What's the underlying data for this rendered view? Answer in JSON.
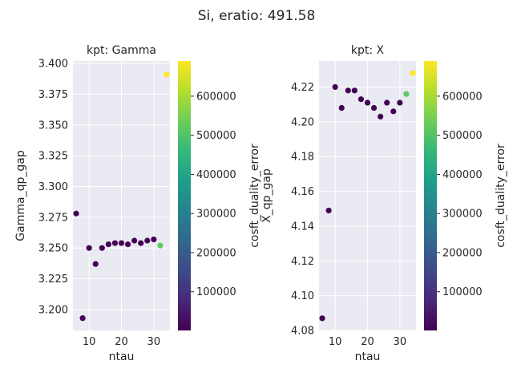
{
  "suptitle": "Si, eratio: 491.58",
  "colors": {
    "axes_bg": "#EAEAF2",
    "grid": "#FFFFFF",
    "text": "#262626",
    "colormap": [
      "#440154",
      "#482878",
      "#3E4A89",
      "#31688E",
      "#26828E",
      "#1F9E89",
      "#35B779",
      "#6DCD59",
      "#B4DE2C",
      "#FDE725"
    ]
  },
  "colorbar": {
    "label": "cosft_duality_error",
    "range": [
      1000,
      690000
    ],
    "ticks": [
      100000,
      200000,
      300000,
      400000,
      500000,
      600000
    ],
    "tick_labels": [
      "100000",
      "200000",
      "300000",
      "400000",
      "500000",
      "600000"
    ]
  },
  "chart_data": [
    {
      "type": "scatter",
      "title": "kpt: Gamma",
      "xlabel": "ntau",
      "ylabel": "Gamma_qp_gap",
      "xlim": [
        5,
        35
      ],
      "ylim": [
        3.183,
        3.402
      ],
      "xticks": [
        10,
        20,
        30
      ],
      "xtick_labels": [
        "10",
        "20",
        "30"
      ],
      "yticks": [
        3.2,
        3.225,
        3.25,
        3.275,
        3.3,
        3.325,
        3.35,
        3.375,
        3.4
      ],
      "ytick_labels": [
        "3.200",
        "3.225",
        "3.250",
        "3.275",
        "3.300",
        "3.325",
        "3.350",
        "3.375",
        "3.400"
      ],
      "grid": true,
      "points": [
        {
          "x": 6,
          "y": 3.278,
          "c": 3000
        },
        {
          "x": 8,
          "y": 3.193,
          "c": 3000
        },
        {
          "x": 10,
          "y": 3.25,
          "c": 3000
        },
        {
          "x": 12,
          "y": 3.237,
          "c": 3000
        },
        {
          "x": 14,
          "y": 3.25,
          "c": 3000
        },
        {
          "x": 16,
          "y": 3.253,
          "c": 3000
        },
        {
          "x": 18,
          "y": 3.254,
          "c": 3000
        },
        {
          "x": 20,
          "y": 3.254,
          "c": 3000
        },
        {
          "x": 22,
          "y": 3.253,
          "c": 3000
        },
        {
          "x": 24,
          "y": 3.256,
          "c": 3000
        },
        {
          "x": 26,
          "y": 3.254,
          "c": 3000
        },
        {
          "x": 28,
          "y": 3.256,
          "c": 3000
        },
        {
          "x": 30,
          "y": 3.257,
          "c": 3000
        },
        {
          "x": 32,
          "y": 3.252,
          "c": 520000
        },
        {
          "x": 34,
          "y": 3.391,
          "c": 690000
        }
      ]
    },
    {
      "type": "scatter",
      "title": "kpt: X",
      "xlabel": "ntau",
      "ylabel": "X_qp_gap",
      "xlim": [
        5,
        35
      ],
      "ylim": [
        4.08,
        4.235
      ],
      "xticks": [
        10,
        20,
        30
      ],
      "xtick_labels": [
        "10",
        "20",
        "30"
      ],
      "yticks": [
        4.08,
        4.1,
        4.12,
        4.14,
        4.16,
        4.18,
        4.2,
        4.22
      ],
      "ytick_labels": [
        "4.08",
        "4.10",
        "4.12",
        "4.14",
        "4.16",
        "4.18",
        "4.20",
        "4.22"
      ],
      "grid": true,
      "points": [
        {
          "x": 6,
          "y": 4.087,
          "c": 3000
        },
        {
          "x": 8,
          "y": 4.149,
          "c": 3000
        },
        {
          "x": 10,
          "y": 4.22,
          "c": 3000
        },
        {
          "x": 12,
          "y": 4.208,
          "c": 3000
        },
        {
          "x": 14,
          "y": 4.218,
          "c": 3000
        },
        {
          "x": 16,
          "y": 4.218,
          "c": 3000
        },
        {
          "x": 18,
          "y": 4.213,
          "c": 3000
        },
        {
          "x": 20,
          "y": 4.211,
          "c": 3000
        },
        {
          "x": 22,
          "y": 4.208,
          "c": 3000
        },
        {
          "x": 24,
          "y": 4.203,
          "c": 3000
        },
        {
          "x": 26,
          "y": 4.211,
          "c": 3000
        },
        {
          "x": 28,
          "y": 4.206,
          "c": 3000
        },
        {
          "x": 30,
          "y": 4.211,
          "c": 3000
        },
        {
          "x": 32,
          "y": 4.216,
          "c": 520000
        },
        {
          "x": 34,
          "y": 4.228,
          "c": 690000
        }
      ]
    }
  ]
}
